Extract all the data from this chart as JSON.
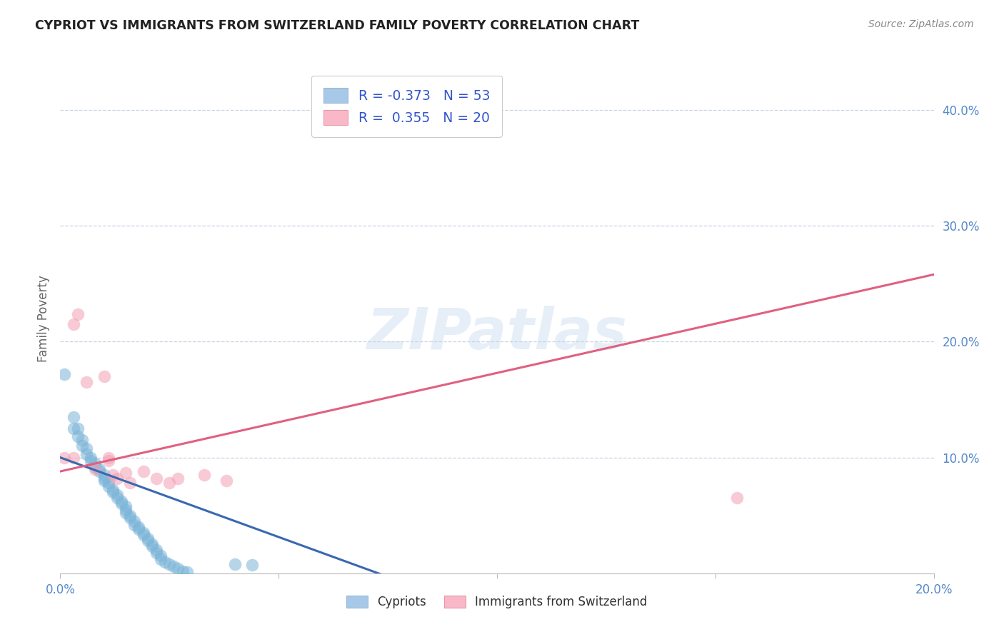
{
  "title": "CYPRIOT VS IMMIGRANTS FROM SWITZERLAND FAMILY POVERTY CORRELATION CHART",
  "source": "Source: ZipAtlas.com",
  "ylabel": "Family Poverty",
  "xlim": [
    0.0,
    0.2
  ],
  "ylim": [
    0.0,
    0.44
  ],
  "cypriot_scatter": [
    [
      0.001,
      0.172
    ],
    [
      0.003,
      0.135
    ],
    [
      0.003,
      0.125
    ],
    [
      0.004,
      0.125
    ],
    [
      0.004,
      0.118
    ],
    [
      0.005,
      0.115
    ],
    [
      0.005,
      0.11
    ],
    [
      0.006,
      0.108
    ],
    [
      0.006,
      0.103
    ],
    [
      0.007,
      0.1
    ],
    [
      0.007,
      0.097
    ],
    [
      0.008,
      0.095
    ],
    [
      0.008,
      0.092
    ],
    [
      0.009,
      0.09
    ],
    [
      0.009,
      0.088
    ],
    [
      0.01,
      0.085
    ],
    [
      0.01,
      0.082
    ],
    [
      0.01,
      0.08
    ],
    [
      0.011,
      0.078
    ],
    [
      0.011,
      0.075
    ],
    [
      0.012,
      0.072
    ],
    [
      0.012,
      0.07
    ],
    [
      0.013,
      0.068
    ],
    [
      0.013,
      0.065
    ],
    [
      0.014,
      0.062
    ],
    [
      0.014,
      0.06
    ],
    [
      0.015,
      0.058
    ],
    [
      0.015,
      0.055
    ],
    [
      0.015,
      0.052
    ],
    [
      0.016,
      0.05
    ],
    [
      0.016,
      0.048
    ],
    [
      0.017,
      0.045
    ],
    [
      0.017,
      0.042
    ],
    [
      0.018,
      0.04
    ],
    [
      0.018,
      0.038
    ],
    [
      0.019,
      0.035
    ],
    [
      0.019,
      0.033
    ],
    [
      0.02,
      0.03
    ],
    [
      0.02,
      0.028
    ],
    [
      0.021,
      0.025
    ],
    [
      0.021,
      0.023
    ],
    [
      0.022,
      0.02
    ],
    [
      0.022,
      0.018
    ],
    [
      0.023,
      0.015
    ],
    [
      0.023,
      0.012
    ],
    [
      0.024,
      0.01
    ],
    [
      0.025,
      0.008
    ],
    [
      0.026,
      0.006
    ],
    [
      0.027,
      0.004
    ],
    [
      0.028,
      0.002
    ],
    [
      0.029,
      0.001
    ],
    [
      0.04,
      0.008
    ],
    [
      0.044,
      0.007
    ]
  ],
  "swiss_scatter": [
    [
      0.001,
      0.1
    ],
    [
      0.003,
      0.215
    ],
    [
      0.004,
      0.224
    ],
    [
      0.006,
      0.165
    ],
    [
      0.008,
      0.09
    ],
    [
      0.01,
      0.17
    ],
    [
      0.011,
      0.097
    ],
    [
      0.011,
      0.1
    ],
    [
      0.012,
      0.085
    ],
    [
      0.013,
      0.082
    ],
    [
      0.015,
      0.087
    ],
    [
      0.016,
      0.078
    ],
    [
      0.019,
      0.088
    ],
    [
      0.022,
      0.082
    ],
    [
      0.025,
      0.078
    ],
    [
      0.027,
      0.082
    ],
    [
      0.033,
      0.085
    ],
    [
      0.038,
      0.08
    ],
    [
      0.155,
      0.065
    ],
    [
      0.003,
      0.1
    ]
  ],
  "cypriot_color": "#7ab4d8",
  "swiss_color": "#f4a0b4",
  "cypriot_line_color": "#3a68b0",
  "swiss_line_color": "#e06080",
  "cypriot_line": [
    [
      0.0,
      0.1
    ],
    [
      0.075,
      -0.003
    ]
  ],
  "swiss_line": [
    [
      0.0,
      0.088
    ],
    [
      0.2,
      0.258
    ]
  ],
  "legend_r1": "R = -0.373   N = 53",
  "legend_r2": "R =  0.355   N = 20",
  "legend_color1": "#a8c8e8",
  "legend_color2": "#f8b8c8",
  "watermark": "ZIPatlas",
  "background_color": "#ffffff",
  "grid_color": "#c8d4e4",
  "title_color": "#222222",
  "source_color": "#888888",
  "tick_color": "#5588cc",
  "ylabel_color": "#666666"
}
